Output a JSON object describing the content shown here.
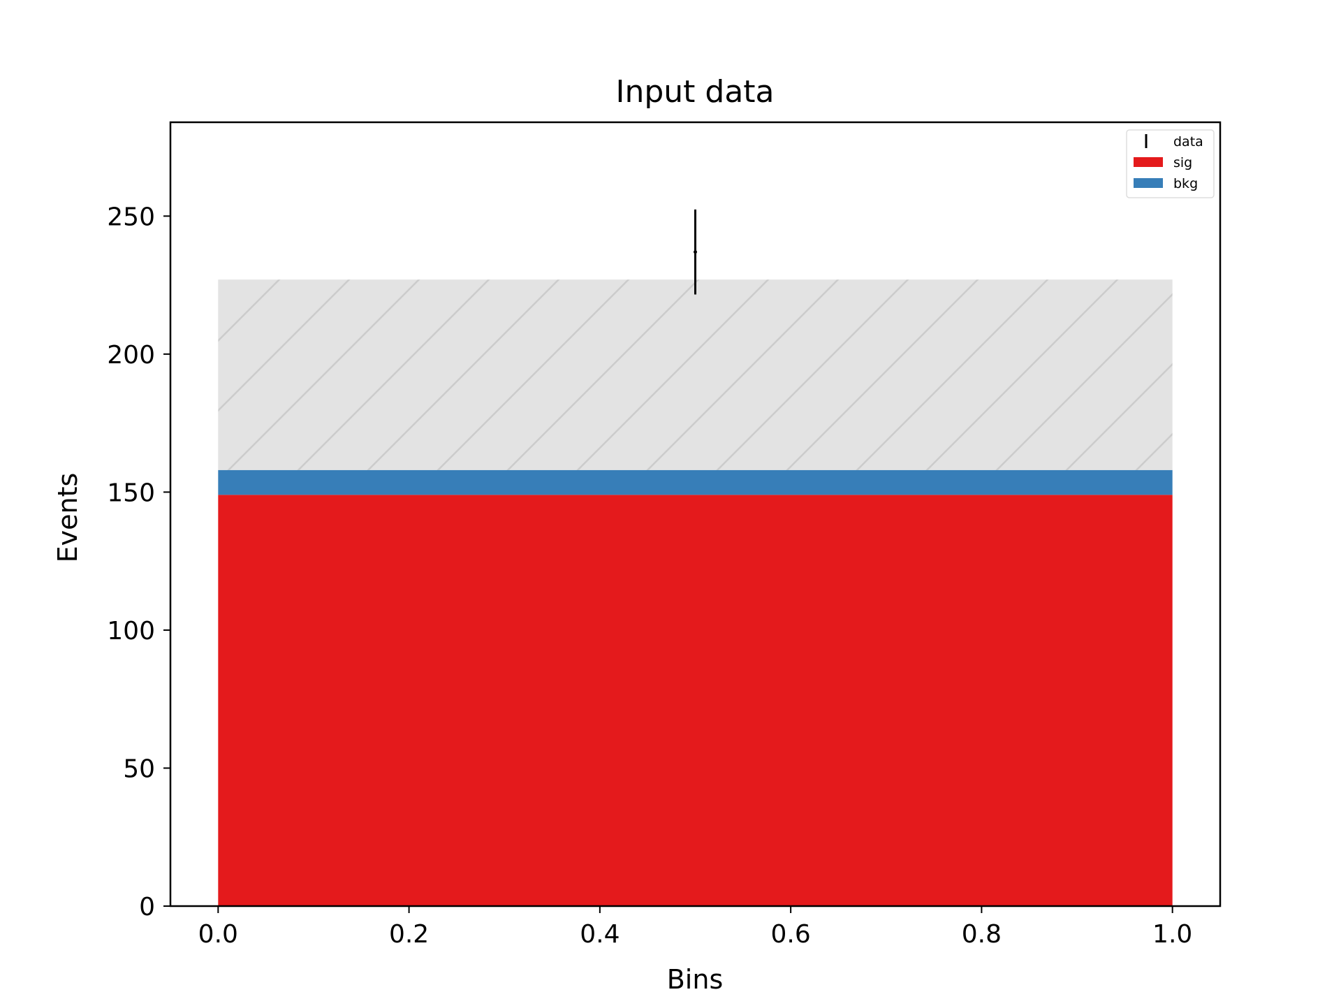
{
  "chart_data": {
    "type": "bar",
    "title": "Input data",
    "xlabel": "Bins",
    "ylabel": "Events",
    "xlim": [
      -0.05,
      1.05
    ],
    "ylim": [
      0,
      284
    ],
    "xticks": [
      0.0,
      0.2,
      0.4,
      0.6,
      0.8,
      1.0
    ],
    "xtick_labels": [
      "0.0",
      "0.2",
      "0.4",
      "0.6",
      "0.8",
      "1.0"
    ],
    "yticks": [
      0,
      50,
      100,
      150,
      200,
      250
    ],
    "ytick_labels": [
      "0",
      "50",
      "100",
      "150",
      "200",
      "250"
    ],
    "bin_edges": [
      0.0,
      1.0
    ],
    "stacked": true,
    "series": [
      {
        "name": "sig",
        "values": [
          149
        ],
        "color": "#e41a1c"
      },
      {
        "name": "bkg",
        "values": [
          9
        ],
        "color": "#377eb8"
      }
    ],
    "uncertainty_band": {
      "low": [
        158
      ],
      "high": [
        227
      ],
      "color": "#e3e3e3",
      "hatch": "diagonal"
    },
    "data_points": {
      "name": "data",
      "x": [
        0.5
      ],
      "y": [
        237
      ],
      "yerr": [
        15.4
      ],
      "color": "#000000"
    },
    "legend": {
      "position": "top-right",
      "entries": [
        {
          "label": "data",
          "kind": "errorbar"
        },
        {
          "label": "sig",
          "kind": "patch",
          "color": "#e41a1c"
        },
        {
          "label": "bkg",
          "kind": "patch",
          "color": "#377eb8"
        }
      ]
    },
    "grid": false
  }
}
